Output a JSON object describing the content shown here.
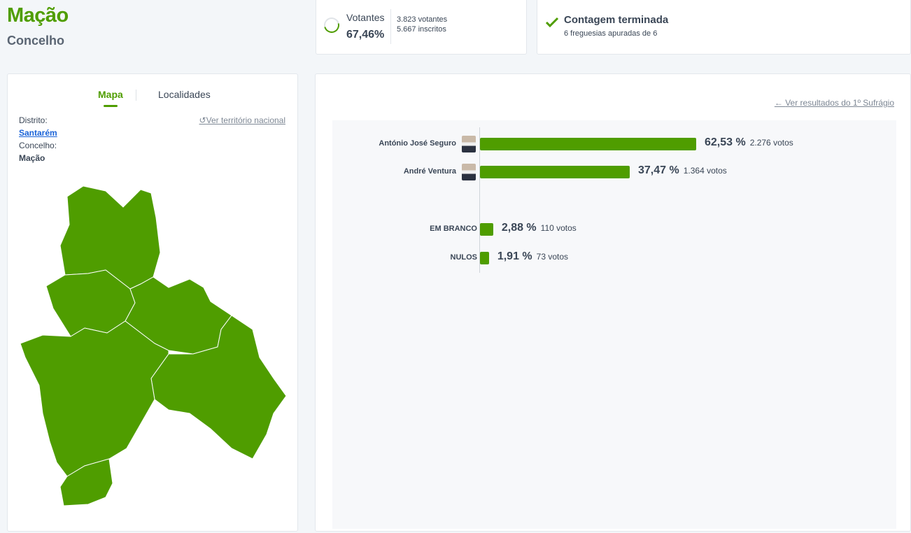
{
  "header": {
    "title": "Mação",
    "subtitle": "Concelho"
  },
  "turnout": {
    "label": "Votantes",
    "percent": "67,46%",
    "voters": "3.823 votantes",
    "registered": "5.667 inscritos",
    "fraction": 0.6746
  },
  "status": {
    "title": "Contagem terminada",
    "subtitle": "6 freguesias apuradas de 6",
    "icon": "check-icon"
  },
  "left_panel": {
    "tabs": [
      {
        "label": "Mapa",
        "active": true
      },
      {
        "label": "Localidades",
        "active": false
      }
    ],
    "national_link": "Ver território nacional",
    "district_label": "Distrito:",
    "district": "Santarém",
    "municipality_label": "Concelho:",
    "municipality": "Mação",
    "map_color": "#4f9d00"
  },
  "results": {
    "first_round_link": "Ver resultados do 1º Sufrágio",
    "candidates": [
      {
        "name": "António José Seguro",
        "percent": "62,53 %",
        "votes": "2.276 votos",
        "value": 62.53
      },
      {
        "name": "André Ventura",
        "percent": "37,47 %",
        "votes": "1.364 votos",
        "value": 37.47
      }
    ],
    "others": [
      {
        "name": "EM BRANCO",
        "percent": "2,88 %",
        "votes": "110 votos",
        "value": 2.88
      },
      {
        "name": "NULOS",
        "percent": "1,91 %",
        "votes": "73 votos",
        "value": 1.91
      }
    ],
    "bar_color": "#4f9d00"
  }
}
